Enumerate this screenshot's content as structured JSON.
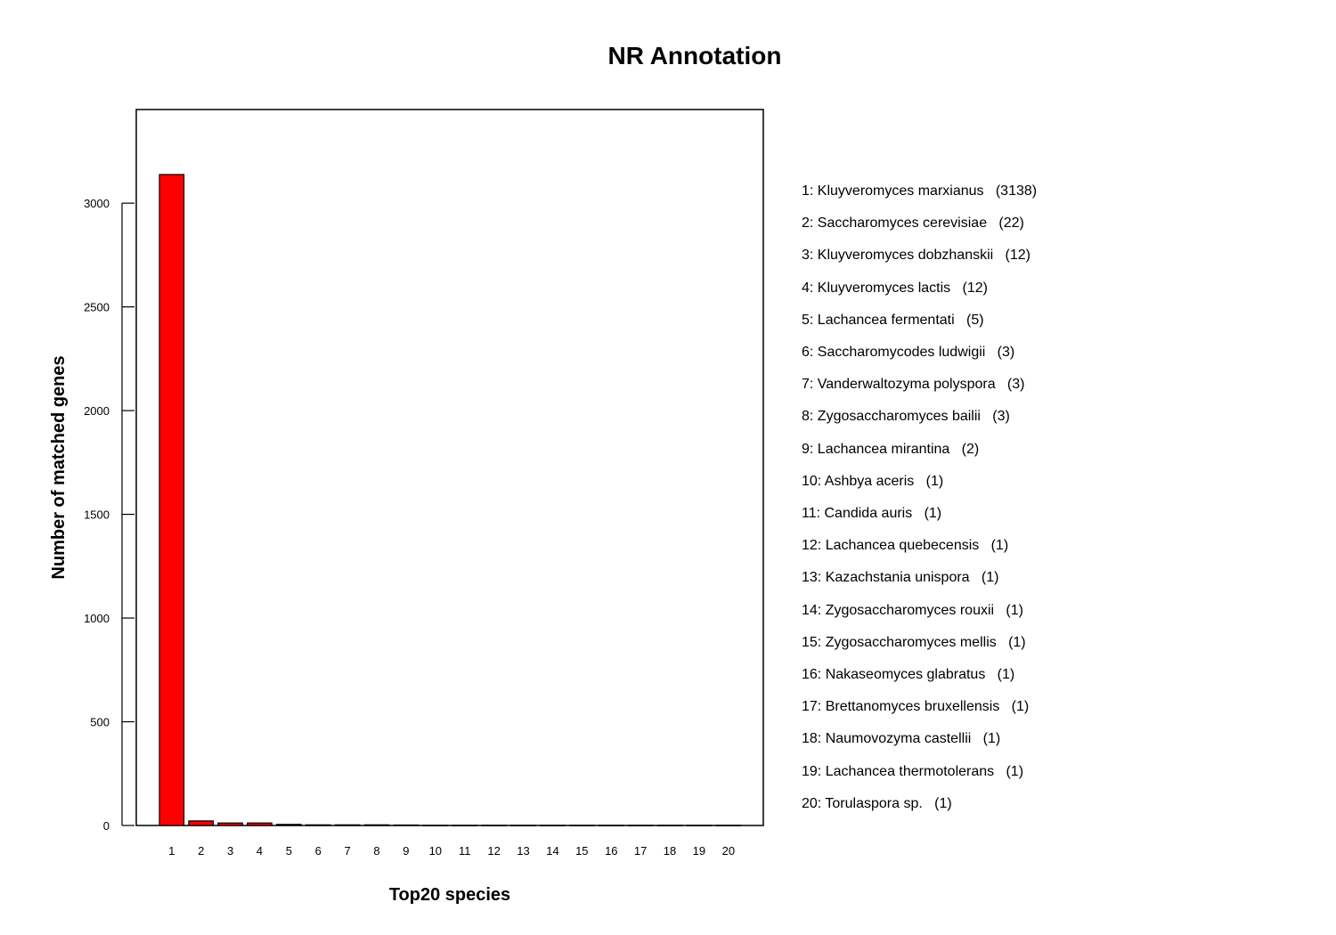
{
  "chart_data": {
    "type": "bar",
    "title": "NR Annotation",
    "xlabel": "Top20 species",
    "ylabel": "Number of matched genes",
    "categories": [
      "1",
      "2",
      "3",
      "4",
      "5",
      "6",
      "7",
      "8",
      "9",
      "10",
      "11",
      "12",
      "13",
      "14",
      "15",
      "16",
      "17",
      "18",
      "19",
      "20"
    ],
    "values": [
      3138,
      22,
      12,
      12,
      5,
      3,
      3,
      3,
      2,
      1,
      1,
      1,
      1,
      1,
      1,
      1,
      1,
      1,
      1,
      1
    ],
    "yticks": [
      0,
      500,
      1000,
      1500,
      2000,
      2500,
      3000
    ],
    "ylim": [
      0,
      3138
    ],
    "grid": false,
    "legend_position": "right",
    "legend": [
      "1: Kluyveromyces marxianus   (3138)",
      "2: Saccharomyces cerevisiae   (22)",
      "3: Kluyveromyces dobzhanskii   (12)",
      "4: Kluyveromyces lactis   (12)",
      "5: Lachancea fermentati   (5)",
      "6: Saccharomycodes ludwigii   (3)",
      "7: Vanderwaltozyma polyspora   (3)",
      "8: Zygosaccharomyces bailii   (3)",
      "9: Lachancea mirantina   (2)",
      "10: Ashbya aceris   (1)",
      "11: Candida auris   (1)",
      "12: Lachancea quebecensis   (1)",
      "13: Kazachstania unispora   (1)",
      "14: Zygosaccharomyces rouxii   (1)",
      "15: Zygosaccharomyces mellis   (1)",
      "16: Nakaseomyces glabratus   (1)",
      "17: Brettanomyces bruxellensis   (1)",
      "18: Naumovozyma castellii   (1)",
      "19: Lachancea thermotolerans   (1)",
      "20: Torulaspora sp.   (1)"
    ],
    "colors": {
      "top_bar": "#ff0000",
      "ramp_end": "#aa0000",
      "bar_stroke": "#000000"
    }
  }
}
